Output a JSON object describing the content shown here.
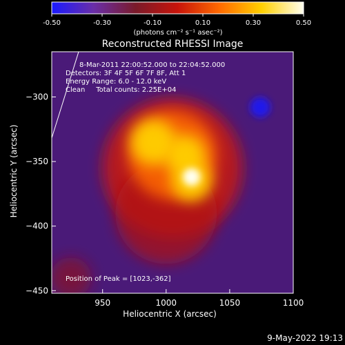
{
  "colorbar": {
    "ticks": [
      {
        "label": "-0.50",
        "value": -0.5
      },
      {
        "label": "-0.30",
        "value": -0.3
      },
      {
        "label": "-0.10",
        "value": -0.1
      },
      {
        "label": "0.10",
        "value": 0.1
      },
      {
        "label": "0.30",
        "value": 0.3
      },
      {
        "label": "0.50",
        "value": 0.5
      }
    ],
    "unit_label": "(photons cm⁻² s⁻¹ asec⁻²)",
    "range": [
      -0.5,
      0.5
    ],
    "colors": [
      "#1a1aff",
      "#6a2ea8",
      "#7a1a2a",
      "#c8140a",
      "#ff6a00",
      "#ffd000",
      "#fffff0"
    ]
  },
  "title": "Reconstructed RHESSI Image",
  "annotations": {
    "time": "8-Mar-2011 22:00:52.000 to 22:04:52.000",
    "detectors": "Detectors: 3F 4F 5F 6F 7F 8F, Att 1",
    "energy": "Energy Range: 6.0 - 12.0 keV",
    "clean": "Clean     Total counts: 2.25E+04",
    "peak": "Position of Peak = [1023,-362]"
  },
  "axes": {
    "xlabel": "Heliocentric X (arcsec)",
    "ylabel": "Heliocentric Y (arcsec)",
    "xlim": [
      910,
      1100
    ],
    "ylim": [
      -452,
      -265
    ],
    "xticks": [
      {
        "label": "950",
        "value": 950
      },
      {
        "label": "1000",
        "value": 1000
      },
      {
        "label": "1050",
        "value": 1050
      },
      {
        "label": "1100",
        "value": 1100
      }
    ],
    "yticks": [
      {
        "label": "-300",
        "value": -300
      },
      {
        "label": "-350",
        "value": -350
      },
      {
        "label": "-400",
        "value": -400
      },
      {
        "label": "-450",
        "value": -450
      }
    ]
  },
  "footer": {
    "timestamp": "9-May-2022 19:13"
  },
  "peak_position": {
    "x": 1023,
    "y": -362
  },
  "emission": {
    "background": "#4a1a78",
    "blobs": [
      {
        "x": 1005,
        "y": -355,
        "r": 55,
        "color": "#c8140a",
        "opacity": 0.85
      },
      {
        "x": 1000,
        "y": -390,
        "r": 40,
        "color": "#b00c0c",
        "opacity": 0.7
      },
      {
        "x": 1005,
        "y": -345,
        "r": 35,
        "color": "#ff6a00",
        "opacity": 0.85
      },
      {
        "x": 990,
        "y": -335,
        "r": 18,
        "color": "#ffd000",
        "opacity": 0.95
      },
      {
        "x": 1015,
        "y": -345,
        "r": 16,
        "color": "#ffd000",
        "opacity": 0.95
      },
      {
        "x": 1020,
        "y": -365,
        "r": 16,
        "color": "#ffd000",
        "opacity": 0.95
      },
      {
        "x": 1020,
        "y": -362,
        "r": 7,
        "color": "#fffff0",
        "opacity": 1
      },
      {
        "x": 1074,
        "y": -308,
        "r": 8,
        "color": "#1a1aff",
        "opacity": 0.85
      },
      {
        "x": 925,
        "y": -440,
        "r": 16,
        "color": "#8a1424",
        "opacity": 0.7
      }
    ]
  }
}
